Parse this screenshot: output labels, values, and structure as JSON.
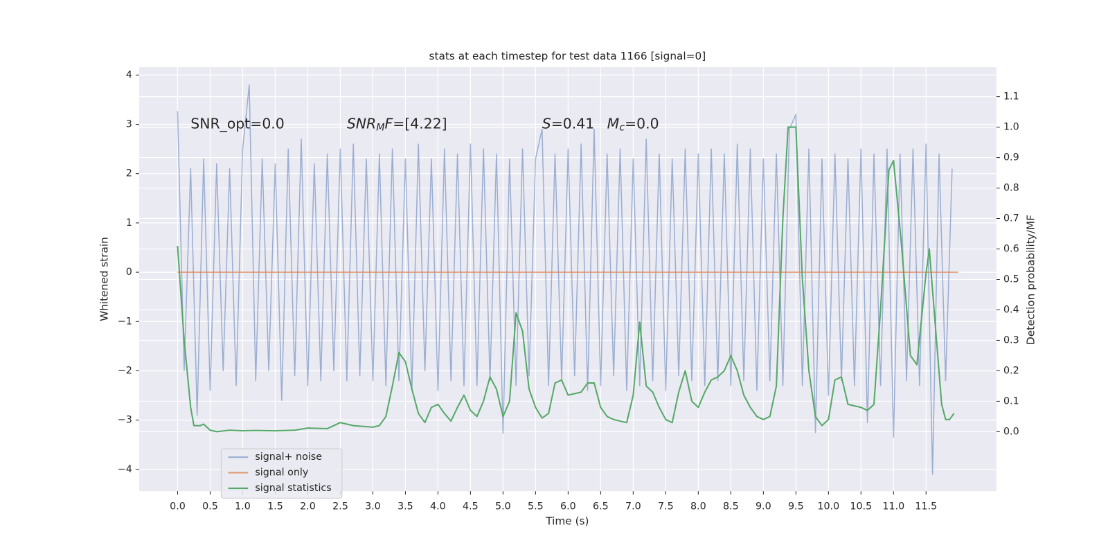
{
  "chart_data": {
    "type": "line",
    "title": "stats at each timestep for test data 1166 [signal=0]",
    "x_label": "Time (s)",
    "y_label": "Whitened strain",
    "y2_label": "Detection probability/MF",
    "xlim": [
      -0.59,
      12.58
    ],
    "ylim": [
      -4.44,
      4.16
    ],
    "y2lim": [
      -0.195,
      1.197
    ],
    "xticks": [
      {
        "value": 0,
        "label": "0.0"
      },
      0.5,
      {
        "value": 1,
        "label": "1.0"
      },
      1.5,
      {
        "value": 2,
        "label": "2.0"
      },
      2.5,
      {
        "value": 3,
        "label": "3.0"
      },
      3.5,
      {
        "value": 4,
        "label": "4.0"
      },
      4.5,
      {
        "value": 5,
        "label": "5.0"
      },
      5.5,
      {
        "value": 6,
        "label": "6.0"
      },
      6.5,
      {
        "value": 7,
        "label": "7.0"
      },
      7.5,
      {
        "value": 8,
        "label": "8.0"
      },
      8.5,
      {
        "value": 9,
        "label": "9.0"
      },
      9.5,
      {
        "value": 10,
        "label": "10.0"
      },
      10.5,
      {
        "value": 11,
        "label": "11.0"
      },
      11.5
    ],
    "yticks": [
      {
        "value": -4,
        "label": "−4"
      },
      {
        "value": -3,
        "label": "−3"
      },
      {
        "value": -2,
        "label": "−2"
      },
      {
        "value": -1,
        "label": "−1"
      },
      0,
      1,
      2,
      3,
      4
    ],
    "y2ticks": [
      {
        "value": 0,
        "label": "0.0"
      },
      0.1,
      0.2,
      0.3,
      0.4,
      0.5,
      0.6,
      0.7,
      0.8,
      0.9,
      {
        "value": 1,
        "label": "1.0"
      },
      1.1
    ],
    "grid": true,
    "legend_position": "lower left",
    "annotations": [
      [
        {
          "text": "SNR_opt=0.0",
          "style": "normal"
        }
      ],
      [
        {
          "text": "SNR",
          "style": "italic"
        },
        {
          "text": "M",
          "style": "italic-sub"
        },
        {
          "text": "F",
          "style": "italic"
        },
        {
          "text": "=[4.22]",
          "style": "normal"
        }
      ],
      [
        {
          "text": "S",
          "style": "italic"
        },
        {
          "text": "=0.41",
          "style": "normal"
        },
        {
          "text": "M",
          "style": "italic-gap"
        },
        {
          "text": "c",
          "style": "italic-sub"
        },
        {
          "text": "=0.0",
          "style": "normal"
        }
      ]
    ],
    "series": [
      {
        "name": "signal+ noise",
        "color": "#4c72b0",
        "opacity": 0.5,
        "axis": "y",
        "x": [
          0.0,
          0.1,
          0.2,
          0.3,
          0.4,
          0.5,
          0.6,
          0.7,
          0.8,
          0.9,
          1.0,
          1.1,
          1.2,
          1.3,
          1.4,
          1.5,
          1.6,
          1.7,
          1.8,
          1.9,
          2.0,
          2.1,
          2.2,
          2.3,
          2.4,
          2.5,
          2.6,
          2.7,
          2.8,
          2.9,
          3.0,
          3.1,
          3.2,
          3.3,
          3.4,
          3.5,
          3.6,
          3.7,
          3.8,
          3.9,
          4.0,
          4.1,
          4.2,
          4.3,
          4.4,
          4.5,
          4.6,
          4.7,
          4.8,
          4.9,
          5.0,
          5.1,
          5.2,
          5.3,
          5.4,
          5.5,
          5.6,
          5.7,
          5.8,
          5.9,
          6.0,
          6.1,
          6.2,
          6.3,
          6.4,
          6.5,
          6.6,
          6.7,
          6.8,
          6.9,
          7.0,
          7.1,
          7.2,
          7.3,
          7.4,
          7.5,
          7.6,
          7.7,
          7.8,
          7.9,
          8.0,
          8.1,
          8.2,
          8.3,
          8.4,
          8.5,
          8.6,
          8.7,
          8.8,
          8.9,
          9.0,
          9.1,
          9.2,
          9.3,
          9.4,
          9.5,
          9.6,
          9.7,
          9.8,
          9.9,
          10.0,
          10.1,
          10.2,
          10.3,
          10.4,
          10.5,
          10.6,
          10.7,
          10.8,
          10.9,
          11.0,
          11.1,
          11.2,
          11.3,
          11.4,
          11.5,
          11.6,
          11.7,
          11.8,
          11.9
        ],
        "values": [
          3.27,
          -2.0,
          2.1,
          -2.9,
          2.3,
          -2.4,
          2.2,
          -2.0,
          2.1,
          -2.3,
          2.5,
          3.8,
          -2.2,
          2.3,
          -2.0,
          2.2,
          -2.6,
          2.5,
          -2.1,
          2.7,
          -2.3,
          2.2,
          -2.2,
          2.4,
          -2.0,
          2.5,
          -2.2,
          2.6,
          -2.1,
          2.3,
          -2.2,
          2.4,
          -2.3,
          2.5,
          -2.2,
          2.3,
          -2.4,
          2.6,
          -2.0,
          2.3,
          -2.4,
          2.5,
          -2.2,
          2.4,
          -2.3,
          2.6,
          -2.3,
          2.5,
          -2.2,
          2.4,
          -3.27,
          2.3,
          -2.3,
          2.5,
          -2.1,
          2.3,
          2.9,
          -2.3,
          2.4,
          -2.2,
          2.5,
          -2.1,
          2.6,
          -2.4,
          2.9,
          -2.3,
          2.4,
          -2.1,
          2.5,
          -2.4,
          2.3,
          -2.3,
          2.7,
          -2.2,
          2.4,
          -2.4,
          2.3,
          -2.1,
          2.5,
          -2.2,
          2.4,
          -2.3,
          2.5,
          -2.2,
          2.4,
          -2.3,
          2.6,
          -2.2,
          2.5,
          -2.4,
          2.3,
          -2.2,
          2.4,
          -2.3,
          2.9,
          3.2,
          -2.3,
          2.5,
          -3.25,
          2.3,
          -2.5,
          2.4,
          -2.2,
          2.3,
          -2.3,
          2.5,
          -3.05,
          2.4,
          -2.3,
          2.5,
          -3.35,
          2.4,
          -2.2,
          2.5,
          -2.3,
          2.6,
          -4.1,
          2.4,
          -2.2,
          2.1
        ]
      },
      {
        "name": "signal only",
        "color": "#dd8452",
        "opacity": 0.8,
        "axis": "y",
        "x": [
          0.0,
          11.99
        ],
        "values": [
          0,
          0
        ]
      },
      {
        "name": "signal statistics",
        "color": "#55a868",
        "opacity": 1,
        "axis": "y2",
        "x": [
          0.0,
          0.1,
          0.2,
          0.25,
          0.35,
          0.4,
          0.5,
          0.6,
          0.8,
          1.0,
          1.2,
          1.5,
          1.8,
          2.0,
          2.3,
          2.5,
          2.7,
          3.0,
          3.1,
          3.2,
          3.3,
          3.4,
          3.5,
          3.6,
          3.7,
          3.8,
          3.9,
          4.0,
          4.1,
          4.2,
          4.3,
          4.4,
          4.5,
          4.6,
          4.7,
          4.8,
          4.9,
          5.0,
          5.1,
          5.2,
          5.3,
          5.4,
          5.5,
          5.6,
          5.7,
          5.8,
          5.9,
          6.0,
          6.2,
          6.3,
          6.4,
          6.5,
          6.6,
          6.7,
          6.8,
          6.9,
          7.0,
          7.1,
          7.2,
          7.3,
          7.4,
          7.5,
          7.6,
          7.7,
          7.8,
          7.9,
          8.0,
          8.1,
          8.2,
          8.3,
          8.4,
          8.5,
          8.6,
          8.7,
          8.8,
          8.9,
          9.0,
          9.1,
          9.2,
          9.3,
          9.38,
          9.5,
          9.6,
          9.7,
          9.8,
          9.9,
          10.0,
          10.1,
          10.2,
          10.3,
          10.5,
          10.6,
          10.7,
          10.8,
          10.93,
          11.0,
          11.12,
          11.26,
          11.36,
          11.5,
          11.55,
          11.66,
          11.74,
          11.8,
          11.86,
          11.93
        ],
        "values": [
          0.61,
          0.3,
          0.08,
          0.02,
          0.02,
          0.025,
          0.005,
          0.0,
          0.005,
          0.003,
          0.004,
          0.003,
          0.005,
          0.012,
          0.01,
          0.03,
          0.02,
          0.015,
          0.02,
          0.05,
          0.15,
          0.26,
          0.23,
          0.14,
          0.06,
          0.03,
          0.08,
          0.09,
          0.06,
          0.035,
          0.08,
          0.12,
          0.07,
          0.05,
          0.1,
          0.18,
          0.14,
          0.05,
          0.1,
          0.39,
          0.33,
          0.14,
          0.08,
          0.045,
          0.06,
          0.16,
          0.17,
          0.12,
          0.13,
          0.16,
          0.16,
          0.08,
          0.05,
          0.04,
          0.035,
          0.03,
          0.12,
          0.36,
          0.15,
          0.13,
          0.08,
          0.04,
          0.03,
          0.13,
          0.2,
          0.1,
          0.08,
          0.13,
          0.17,
          0.18,
          0.2,
          0.25,
          0.2,
          0.12,
          0.08,
          0.05,
          0.04,
          0.05,
          0.15,
          0.7,
          1.0,
          1.0,
          0.5,
          0.2,
          0.05,
          0.02,
          0.04,
          0.17,
          0.18,
          0.09,
          0.08,
          0.07,
          0.09,
          0.4,
          0.86,
          0.89,
          0.62,
          0.25,
          0.22,
          0.52,
          0.6,
          0.3,
          0.09,
          0.04,
          0.04,
          0.06
        ]
      }
    ]
  }
}
